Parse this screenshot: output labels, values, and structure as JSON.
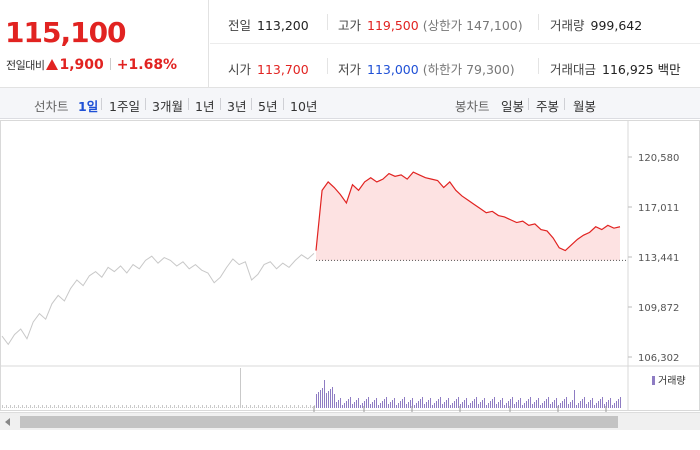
{
  "price": {
    "current": "115,100",
    "change_label": "전일대비",
    "change_value": "1,900",
    "change_pct": "+1.68%"
  },
  "stats": {
    "prev_close": {
      "label": "전일",
      "value": "113,200"
    },
    "high": {
      "label": "고가",
      "value": "119,500",
      "sub": "(상한가 147,100)"
    },
    "volume": {
      "label": "거래량",
      "value": "999,642"
    },
    "open": {
      "label": "시가",
      "value": "113,700"
    },
    "low": {
      "label": "저가",
      "value": "113,000",
      "sub": "(하한가 79,300)"
    },
    "trade_value": {
      "label": "거래대금",
      "value": "116,925 백만"
    }
  },
  "tabs": {
    "line_chart": "선차트",
    "periods": [
      "1일",
      "1주일",
      "3개월",
      "1년",
      "3년",
      "5년",
      "10년"
    ],
    "candle_chart": "봉차트",
    "candles": [
      "일봉",
      "주봉",
      "월봉"
    ]
  },
  "colors": {
    "up": "#e12321",
    "down": "#1f50d6",
    "prev_line": "#c8c8c8",
    "volume": "#8e7cc3"
  },
  "chart_data": {
    "type": "line",
    "y_ticks": [
      "120,580",
      "117,011",
      "113,441",
      "109,872",
      "106,302"
    ],
    "ylim": [
      106302,
      120580
    ],
    "reference_price": 113200,
    "volume_legend": "거래량",
    "prev_day_series": [
      [
        0.0,
        107800
      ],
      [
        0.02,
        107200
      ],
      [
        0.04,
        107900
      ],
      [
        0.06,
        108300
      ],
      [
        0.08,
        107600
      ],
      [
        0.1,
        108800
      ],
      [
        0.12,
        109400
      ],
      [
        0.14,
        109000
      ],
      [
        0.16,
        110100
      ],
      [
        0.18,
        110700
      ],
      [
        0.2,
        110300
      ],
      [
        0.22,
        111200
      ],
      [
        0.24,
        111800
      ],
      [
        0.26,
        111400
      ],
      [
        0.28,
        112100
      ],
      [
        0.3,
        112400
      ],
      [
        0.32,
        112000
      ],
      [
        0.34,
        112700
      ],
      [
        0.36,
        112400
      ],
      [
        0.38,
        112800
      ],
      [
        0.4,
        112300
      ],
      [
        0.42,
        112900
      ],
      [
        0.44,
        112600
      ],
      [
        0.46,
        113200
      ],
      [
        0.48,
        113500
      ],
      [
        0.5,
        113000
      ],
      [
        0.52,
        113400
      ],
      [
        0.54,
        113200
      ],
      [
        0.56,
        112800
      ],
      [
        0.58,
        113100
      ],
      [
        0.6,
        112600
      ],
      [
        0.62,
        112900
      ],
      [
        0.64,
        112500
      ],
      [
        0.66,
        112300
      ],
      [
        0.68,
        111600
      ],
      [
        0.7,
        112000
      ],
      [
        0.72,
        112700
      ],
      [
        0.74,
        113300
      ],
      [
        0.76,
        112900
      ],
      [
        0.78,
        113100
      ],
      [
        0.8,
        111800
      ],
      [
        0.82,
        112200
      ],
      [
        0.84,
        112900
      ],
      [
        0.86,
        113100
      ],
      [
        0.88,
        112600
      ],
      [
        0.9,
        113000
      ],
      [
        0.92,
        112700
      ],
      [
        0.94,
        113200
      ],
      [
        0.96,
        113600
      ],
      [
        0.98,
        113300
      ],
      [
        1.0,
        113700
      ]
    ],
    "today_series": [
      [
        0.0,
        113900
      ],
      [
        0.02,
        118200
      ],
      [
        0.04,
        118800
      ],
      [
        0.06,
        118400
      ],
      [
        0.08,
        117900
      ],
      [
        0.1,
        117300
      ],
      [
        0.12,
        118600
      ],
      [
        0.14,
        118200
      ],
      [
        0.16,
        118800
      ],
      [
        0.18,
        119100
      ],
      [
        0.2,
        118800
      ],
      [
        0.22,
        119000
      ],
      [
        0.24,
        119400
      ],
      [
        0.26,
        119200
      ],
      [
        0.28,
        119300
      ],
      [
        0.3,
        119000
      ],
      [
        0.32,
        119500
      ],
      [
        0.34,
        119300
      ],
      [
        0.36,
        119100
      ],
      [
        0.38,
        119000
      ],
      [
        0.4,
        118900
      ],
      [
        0.42,
        118400
      ],
      [
        0.44,
        118800
      ],
      [
        0.46,
        118200
      ],
      [
        0.48,
        117800
      ],
      [
        0.5,
        117500
      ],
      [
        0.52,
        117200
      ],
      [
        0.54,
        116900
      ],
      [
        0.56,
        116600
      ],
      [
        0.58,
        116700
      ],
      [
        0.6,
        116400
      ],
      [
        0.62,
        116300
      ],
      [
        0.64,
        116100
      ],
      [
        0.66,
        115900
      ],
      [
        0.68,
        116000
      ],
      [
        0.7,
        115700
      ],
      [
        0.72,
        115800
      ],
      [
        0.74,
        115400
      ],
      [
        0.76,
        115300
      ],
      [
        0.78,
        114800
      ],
      [
        0.8,
        114100
      ],
      [
        0.82,
        113900
      ],
      [
        0.84,
        114300
      ],
      [
        0.86,
        114700
      ],
      [
        0.88,
        115000
      ],
      [
        0.9,
        115200
      ],
      [
        0.92,
        115600
      ],
      [
        0.94,
        115400
      ],
      [
        0.96,
        115700
      ],
      [
        0.98,
        115500
      ],
      [
        1.0,
        115600
      ]
    ]
  }
}
